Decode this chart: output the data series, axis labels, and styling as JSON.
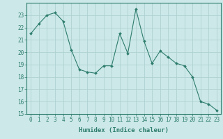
{
  "x": [
    0,
    1,
    2,
    3,
    4,
    5,
    6,
    7,
    8,
    9,
    10,
    11,
    12,
    13,
    14,
    15,
    16,
    17,
    18,
    19,
    20,
    21,
    22,
    23
  ],
  "y": [
    21.5,
    22.3,
    23.0,
    23.2,
    22.5,
    20.2,
    18.6,
    18.4,
    18.3,
    18.9,
    18.9,
    21.5,
    19.9,
    23.5,
    20.9,
    19.1,
    20.1,
    19.6,
    19.1,
    18.9,
    18.0,
    16.0,
    15.8,
    15.3
  ],
  "line_color": "#2e7d6e",
  "marker": "D",
  "marker_size": 2,
  "bg_color": "#cce8e8",
  "grid_color": "#aacece",
  "xlabel": "Humidex (Indice chaleur)",
  "ylim": [
    15,
    24
  ],
  "yticks": [
    15,
    16,
    17,
    18,
    19,
    20,
    21,
    22,
    23
  ],
  "xlim": [
    -0.5,
    23.5
  ],
  "xticks": [
    0,
    1,
    2,
    3,
    4,
    5,
    6,
    7,
    8,
    9,
    10,
    11,
    12,
    13,
    14,
    15,
    16,
    17,
    18,
    19,
    20,
    21,
    22,
    23
  ],
  "tick_color": "#2e7d6e",
  "label_color": "#2e7d6e",
  "axis_fontsize": 6,
  "tick_fontsize": 5.5,
  "xlabel_fontsize": 6.5
}
